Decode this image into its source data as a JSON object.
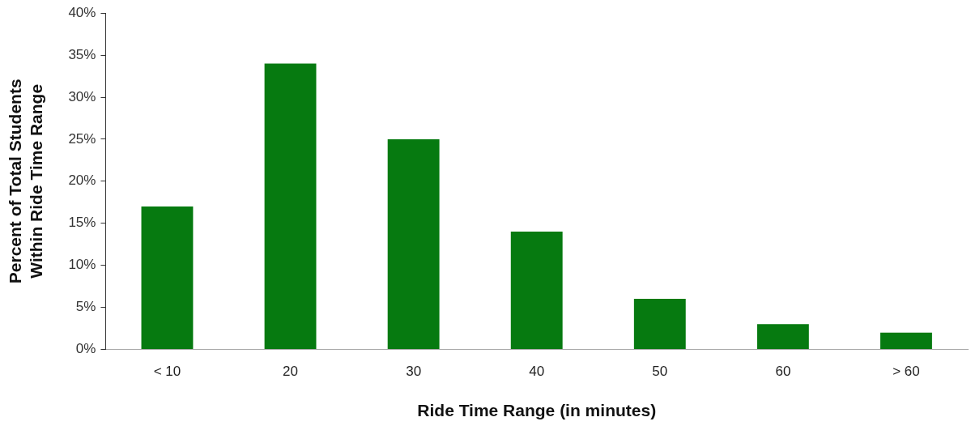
{
  "chart_data": {
    "type": "bar",
    "xlabel": "Ride Time Range (in minutes)",
    "ylabel": "Percent of Total Students\nWithin Ride Time Range",
    "categories": [
      "< 10",
      "20",
      "30",
      "40",
      "50",
      "60",
      "> 60"
    ],
    "values": [
      17,
      34,
      25,
      14,
      6,
      3,
      2
    ],
    "color": "#067a10",
    "ylim": [
      0,
      40
    ],
    "yticks": [
      {
        "value": 0,
        "label": "0%"
      },
      {
        "value": 5,
        "label": "5%"
      },
      {
        "value": 10,
        "label": "10%"
      },
      {
        "value": 15,
        "label": "15%"
      },
      {
        "value": 20,
        "label": "20%"
      },
      {
        "value": 25,
        "label": "25%"
      },
      {
        "value": 30,
        "label": "30%"
      },
      {
        "value": 35,
        "label": "35%"
      },
      {
        "value": 40,
        "label": "40%"
      }
    ],
    "grid": false,
    "legend": false
  }
}
